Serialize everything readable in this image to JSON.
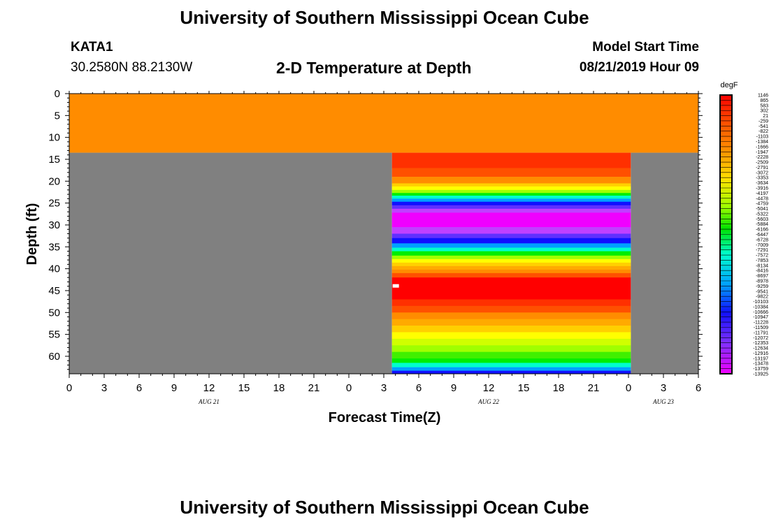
{
  "header": {
    "top_title": "University of Southern Mississippi Ocean Cube",
    "bottom_title": "University of Southern Mississippi Ocean Cube",
    "station_id": "KATA1",
    "coordinates": "30.2580N 88.2130W",
    "plot_title": "2-D Temperature at Depth",
    "model_start_label": "Model Start Time",
    "model_start_value": "08/21/2019 Hour 09"
  },
  "colors": {
    "missing_gray": "#808080",
    "surface_orange": "#ff8c00",
    "marker_white": "#ffffff"
  },
  "chart_data": {
    "type": "heatmap",
    "title": "2-D Temperature at Depth",
    "xlabel": "Forecast Time(Z)",
    "ylabel": "Depth (ft)",
    "x_ticks": [
      "0",
      "3",
      "6",
      "9",
      "12",
      "15",
      "18",
      "21",
      "0",
      "3",
      "6",
      "9",
      "12",
      "15",
      "18",
      "21",
      "0",
      "3",
      "6"
    ],
    "x_range_hours": [
      0,
      54
    ],
    "date_labels": [
      {
        "text": "AUG 21",
        "hour": 12
      },
      {
        "text": "AUG 22",
        "hour": 36
      },
      {
        "text": "AUG 23",
        "hour": 51
      }
    ],
    "y_ticks": [
      0,
      5,
      10,
      15,
      20,
      25,
      30,
      35,
      40,
      45,
      50,
      55,
      60
    ],
    "y_range_ft": [
      0,
      64
    ],
    "surface_layer": {
      "depth_from": 0,
      "depth_to": 13.5,
      "color": "#ff8c00",
      "hours": [
        0,
        54
      ]
    },
    "missing_regions": [
      {
        "hours": [
          0,
          27.7
        ],
        "depth_from": 13.5,
        "depth_to": 64,
        "color": "#808080"
      },
      {
        "hours": [
          48.2,
          54
        ],
        "depth_from": 13.5,
        "depth_to": 64,
        "color": "#808080"
      }
    ],
    "data_window_hours": [
      27.7,
      48.2
    ],
    "depth_bands": [
      {
        "from": 13.5,
        "to": 17,
        "color": "#ff3000"
      },
      {
        "from": 17,
        "to": 19,
        "color": "#ff5000"
      },
      {
        "from": 19,
        "to": 20.5,
        "color": "#ff8c00"
      },
      {
        "from": 20.5,
        "to": 21.2,
        "color": "#ffd000"
      },
      {
        "from": 21.2,
        "to": 22,
        "color": "#ffff00"
      },
      {
        "from": 22,
        "to": 22.7,
        "color": "#a0ff00"
      },
      {
        "from": 22.7,
        "to": 23.3,
        "color": "#00ee00"
      },
      {
        "from": 23.3,
        "to": 24,
        "color": "#00ffcc"
      },
      {
        "from": 24,
        "to": 24.7,
        "color": "#00a0ff"
      },
      {
        "from": 24.7,
        "to": 25.5,
        "color": "#1010ff"
      },
      {
        "from": 25.5,
        "to": 26.3,
        "color": "#6030ff"
      },
      {
        "from": 26.3,
        "to": 27.2,
        "color": "#c040ff"
      },
      {
        "from": 27.2,
        "to": 30.5,
        "color": "#f000ff"
      },
      {
        "from": 30.5,
        "to": 32,
        "color": "#c040ff"
      },
      {
        "from": 32,
        "to": 33,
        "color": "#6030ff"
      },
      {
        "from": 33,
        "to": 34.2,
        "color": "#1010ff"
      },
      {
        "from": 34.2,
        "to": 35.2,
        "color": "#00a0ff"
      },
      {
        "from": 35.2,
        "to": 36,
        "color": "#00ffcc"
      },
      {
        "from": 36,
        "to": 37,
        "color": "#00ee00"
      },
      {
        "from": 37,
        "to": 37.8,
        "color": "#a0ff00"
      },
      {
        "from": 37.8,
        "to": 38.6,
        "color": "#ffff00"
      },
      {
        "from": 38.6,
        "to": 39.4,
        "color": "#ffd000"
      },
      {
        "from": 39.4,
        "to": 40.2,
        "color": "#ffaa00"
      },
      {
        "from": 40.2,
        "to": 41,
        "color": "#ff8c00"
      },
      {
        "from": 41,
        "to": 42,
        "color": "#ff5000"
      },
      {
        "from": 42,
        "to": 47,
        "color": "#ff0000"
      },
      {
        "from": 47,
        "to": 48.5,
        "color": "#ff3000"
      },
      {
        "from": 48.5,
        "to": 50,
        "color": "#ff5000"
      },
      {
        "from": 50,
        "to": 51.5,
        "color": "#ff8c00"
      },
      {
        "from": 51.5,
        "to": 53,
        "color": "#ffaa00"
      },
      {
        "from": 53,
        "to": 54.5,
        "color": "#ffd000"
      },
      {
        "from": 54.5,
        "to": 56,
        "color": "#ffff00"
      },
      {
        "from": 56,
        "to": 57.5,
        "color": "#d0ff00"
      },
      {
        "from": 57.5,
        "to": 59,
        "color": "#a0ff00"
      },
      {
        "from": 59,
        "to": 60.5,
        "color": "#40f000"
      },
      {
        "from": 60.5,
        "to": 61.5,
        "color": "#00ee00"
      },
      {
        "from": 61.5,
        "to": 62.5,
        "color": "#00ffcc"
      },
      {
        "from": 62.5,
        "to": 63.3,
        "color": "#00a0ff"
      },
      {
        "from": 63.3,
        "to": 64,
        "color": "#1010ff"
      }
    ],
    "marker": {
      "hour": 28.0,
      "depth": 44,
      "color": "#ffffff"
    },
    "colorbar": {
      "unit": "degF",
      "labels_top_to_bottom": [
        "1146",
        "865",
        "583",
        "302",
        "21",
        "-259",
        "-541",
        "-822",
        "-1103",
        "-1384",
        "-1666",
        "-1947",
        "-2228",
        "-2509",
        "-2791",
        "-3072",
        "-3353",
        "-3634",
        "-3916",
        "-4197",
        "-4478",
        "-4759",
        "-5041",
        "-5322",
        "-5603",
        "-5884",
        "-6166",
        "-6447",
        "-6728",
        "-7009",
        "-7291",
        "-7572",
        "-7853",
        "-8134",
        "-8416",
        "-8697",
        "-8978",
        "-9259",
        "-9541",
        "-9822",
        "-10103",
        "-10384",
        "-10666",
        "-10947",
        "-11228",
        "-11509",
        "-11791",
        "-12072",
        "-12353",
        "-12634",
        "-12916",
        "-13197",
        "-13478",
        "-13759",
        "-13925"
      ],
      "min": -13925,
      "max": 1146
    }
  }
}
